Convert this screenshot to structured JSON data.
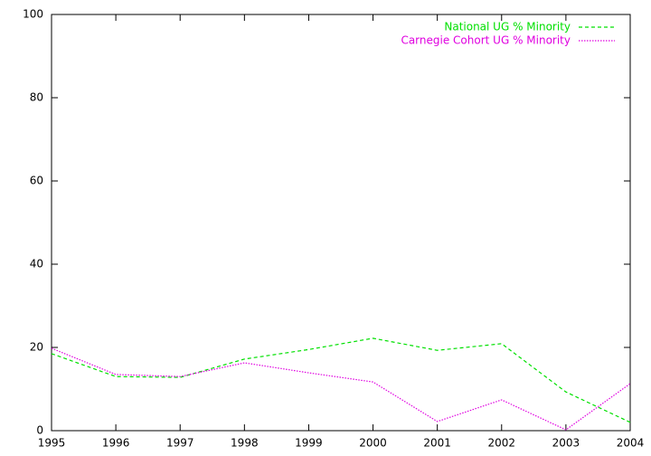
{
  "chart_data": {
    "type": "line",
    "x": [
      1995,
      1996,
      1997,
      1998,
      1999,
      2000,
      2001,
      2002,
      2003,
      2004
    ],
    "series": [
      {
        "name": "National UG % Minority",
        "color": "#00e000",
        "dash": "dashed",
        "values": [
          18.5,
          13,
          12.8,
          17.2,
          19.5,
          22.2,
          19.3,
          20.9,
          9.3,
          2
        ]
      },
      {
        "name": "Carnegie Cohort UG % Minority",
        "color": "#e000e0",
        "dash": "dotted",
        "values": [
          19.8,
          13.5,
          13,
          16.3,
          13.9,
          11.7,
          2.2,
          7.4,
          0.2,
          11.3
        ]
      }
    ],
    "xlim": [
      1995,
      2004
    ],
    "xticks": [
      1995,
      1996,
      1997,
      1998,
      1999,
      2000,
      2001,
      2002,
      2003,
      2004
    ],
    "ylim": [
      0,
      100
    ],
    "yticks": [
      0,
      20,
      40,
      60,
      80,
      100
    ],
    "grid": false,
    "legend": "top-right"
  }
}
